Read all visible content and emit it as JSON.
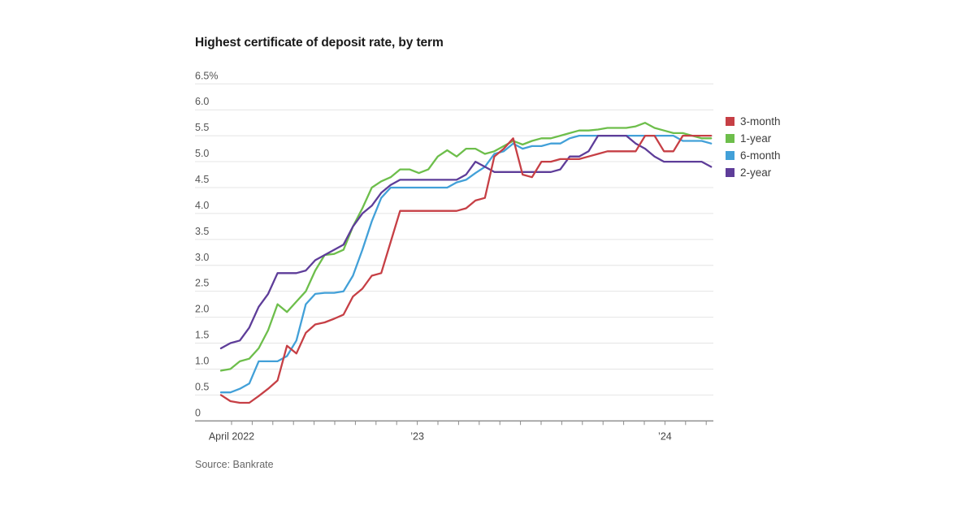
{
  "title": "Highest certificate of deposit rate, by term",
  "source": "Source: Bankrate",
  "colors": {
    "three_month": "#c63f45",
    "one_year": "#6dbe4b",
    "six_month": "#42a0d8",
    "two_year": "#5e3d99",
    "gridline": "#e4e4e4",
    "axis": "#8a8a8a",
    "axis_label": "#555555",
    "title_text": "#1a1a1a"
  },
  "legend": [
    {
      "label": "3-month",
      "color": "#c63f45"
    },
    {
      "label": "1-year",
      "color": "#6dbe4b"
    },
    {
      "label": "6-month",
      "color": "#42a0d8"
    },
    {
      "label": "2-year",
      "color": "#5e3d99"
    }
  ],
  "y_axis": {
    "values": [
      6.5,
      6.0,
      5.5,
      5.0,
      4.5,
      4.0,
      3.5,
      3.0,
      2.5,
      2.0,
      1.5,
      1.0,
      0.5,
      0
    ],
    "labels": [
      "6.5%",
      "6.0",
      "5.5",
      "5.0",
      "4.5",
      "4.0",
      "3.5",
      "3.0",
      "2.5",
      "2.0",
      "1.5",
      "1.0",
      "0.5",
      "0"
    ]
  },
  "x_axis": {
    "months_total": 24,
    "tick_unit": "month",
    "labels": [
      {
        "text": "April 2022",
        "month": 0
      },
      {
        "text": "’23",
        "month": 9
      },
      {
        "text": "’24",
        "month": 21
      }
    ]
  },
  "chart_data": {
    "type": "line",
    "x_unit": "weeks since April 2022",
    "ylim": [
      0,
      6.5
    ],
    "grid": "horizontal",
    "legend_position": "right",
    "x": [
      0,
      2,
      4,
      6,
      8,
      10,
      12,
      14,
      16,
      18,
      20,
      22,
      24,
      26,
      28,
      30,
      32,
      34,
      36,
      38,
      40,
      42,
      44,
      46,
      48,
      50,
      52,
      54,
      56,
      58,
      60,
      62,
      64,
      66,
      68,
      70,
      72,
      74,
      76,
      78,
      80,
      82,
      84,
      86,
      88,
      90,
      92,
      94,
      96,
      98,
      100,
      102,
      104
    ],
    "series": [
      {
        "name": "3-month",
        "color": "#c63f45",
        "values": [
          0.5,
          0.38,
          0.35,
          0.35,
          0.48,
          0.62,
          0.78,
          1.45,
          1.3,
          1.7,
          1.86,
          1.9,
          1.97,
          2.05,
          2.4,
          2.55,
          2.8,
          2.85,
          3.45,
          4.05,
          4.05,
          4.05,
          4.05,
          4.05,
          4.05,
          4.05,
          4.1,
          4.25,
          4.3,
          5.1,
          5.25,
          5.45,
          4.75,
          4.7,
          5.0,
          5.0,
          5.05,
          5.05,
          5.05,
          5.1,
          5.15,
          5.2,
          5.2,
          5.2,
          5.2,
          5.5,
          5.5,
          5.2,
          5.2,
          5.5,
          5.5,
          5.5,
          5.5
        ]
      },
      {
        "name": "1-year",
        "color": "#6dbe4b",
        "values": [
          0.97,
          1.0,
          1.15,
          1.2,
          1.4,
          1.75,
          2.25,
          2.1,
          2.3,
          2.5,
          2.9,
          3.2,
          3.22,
          3.3,
          3.75,
          4.1,
          4.5,
          4.62,
          4.7,
          4.85,
          4.85,
          4.78,
          4.85,
          5.1,
          5.22,
          5.1,
          5.25,
          5.25,
          5.15,
          5.2,
          5.3,
          5.4,
          5.33,
          5.4,
          5.45,
          5.45,
          5.5,
          5.55,
          5.6,
          5.6,
          5.62,
          5.65,
          5.65,
          5.65,
          5.68,
          5.75,
          5.65,
          5.6,
          5.55,
          5.55,
          5.5,
          5.45,
          5.45
        ]
      },
      {
        "name": "6-month",
        "color": "#42a0d8",
        "values": [
          0.55,
          0.55,
          0.62,
          0.72,
          1.15,
          1.15,
          1.15,
          1.25,
          1.55,
          2.25,
          2.45,
          2.47,
          2.47,
          2.5,
          2.8,
          3.3,
          3.85,
          4.3,
          4.5,
          4.5,
          4.5,
          4.5,
          4.5,
          4.5,
          4.5,
          4.6,
          4.65,
          4.78,
          4.9,
          5.15,
          5.2,
          5.35,
          5.25,
          5.3,
          5.3,
          5.35,
          5.35,
          5.45,
          5.5,
          5.5,
          5.5,
          5.5,
          5.5,
          5.5,
          5.5,
          5.5,
          5.5,
          5.5,
          5.5,
          5.4,
          5.4,
          5.4,
          5.35
        ]
      },
      {
        "name": "2-year",
        "color": "#5e3d99",
        "values": [
          1.4,
          1.5,
          1.55,
          1.8,
          2.2,
          2.45,
          2.85,
          2.85,
          2.85,
          2.9,
          3.1,
          3.2,
          3.3,
          3.4,
          3.75,
          4.0,
          4.15,
          4.4,
          4.55,
          4.65,
          4.65,
          4.65,
          4.65,
          4.65,
          4.65,
          4.65,
          4.75,
          5.0,
          4.9,
          4.8,
          4.8,
          4.8,
          4.8,
          4.8,
          4.8,
          4.8,
          4.85,
          5.1,
          5.1,
          5.2,
          5.5,
          5.5,
          5.5,
          5.5,
          5.35,
          5.25,
          5.1,
          5.0,
          5.0,
          5.0,
          5.0,
          5.0,
          4.9
        ]
      }
    ]
  }
}
